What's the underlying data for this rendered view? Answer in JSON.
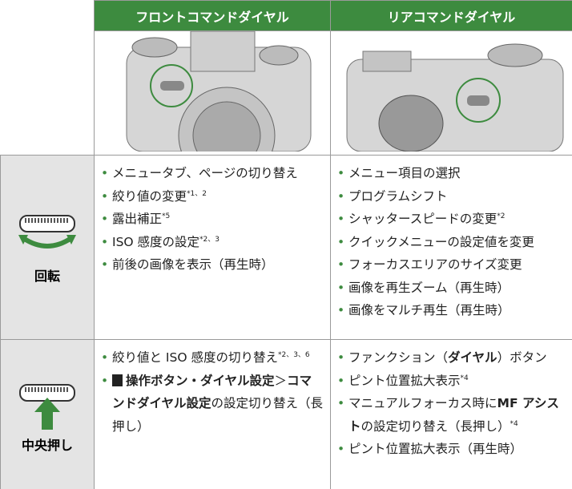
{
  "header": {
    "columns": [
      "フロントコマンドダイヤル",
      "リアコマンドダイヤル"
    ]
  },
  "rows": [
    {
      "label": "回転",
      "cells": [
        [
          [
            {
              "text": "メニュータブ、ページの切り替え"
            }
          ],
          [
            {
              "text": "絞り値の変更"
            },
            {
              "text": "*1、2",
              "sup": true
            }
          ],
          [
            {
              "text": "露出補正"
            },
            {
              "text": "*5",
              "sup": true
            }
          ],
          [
            {
              "text": "ISO 感度の設定"
            },
            {
              "text": "*2、3",
              "sup": true
            }
          ],
          [
            {
              "text": "前後の画像を表示（再生時）"
            }
          ]
        ],
        [
          [
            {
              "text": "メニュー項目の選択"
            }
          ],
          [
            {
              "text": "プログラムシフト"
            }
          ],
          [
            {
              "text": "シャッタースピードの変更"
            },
            {
              "text": "*2",
              "sup": true
            }
          ],
          [
            {
              "text": "クイックメニューの設定値を変更"
            }
          ],
          [
            {
              "text": "フォーカスエリアのサイズ変更"
            }
          ],
          [
            {
              "text": "画像を再生ズーム（再生時）"
            }
          ],
          [
            {
              "text": "画像をマルチ再生（再生時）"
            }
          ]
        ]
      ]
    },
    {
      "label": "中央押し",
      "cells": [
        [
          [
            {
              "text": "絞り値と ISO 感度の切り替え"
            },
            {
              "text": "*2、3、6",
              "sup": true
            }
          ],
          [
            {
              "text": "操作ボタン・ダイヤル設定",
              "bold": true,
              "icon": true
            },
            {
              "text": "＞"
            },
            {
              "text": "コマンドダイヤル設定",
              "bold": true
            },
            {
              "text": "の設定切り替え（長押し）"
            }
          ]
        ],
        [
          [
            {
              "text": "ファンクション（"
            },
            {
              "text": "ダイヤル",
              "bold": true
            },
            {
              "text": "）ボタン"
            }
          ],
          [
            {
              "text": "ピント位置拡大表示"
            },
            {
              "text": "*4",
              "sup": true
            }
          ],
          [
            {
              "text": "マニュアルフォーカス時に"
            },
            {
              "text": "MF アシスト",
              "bold": true
            },
            {
              "text": "の設定切り替え（長押し）"
            },
            {
              "text": "*4",
              "sup": true
            }
          ],
          [
            {
              "text": "ピント位置拡大表示（再生時）"
            }
          ]
        ]
      ]
    }
  ]
}
